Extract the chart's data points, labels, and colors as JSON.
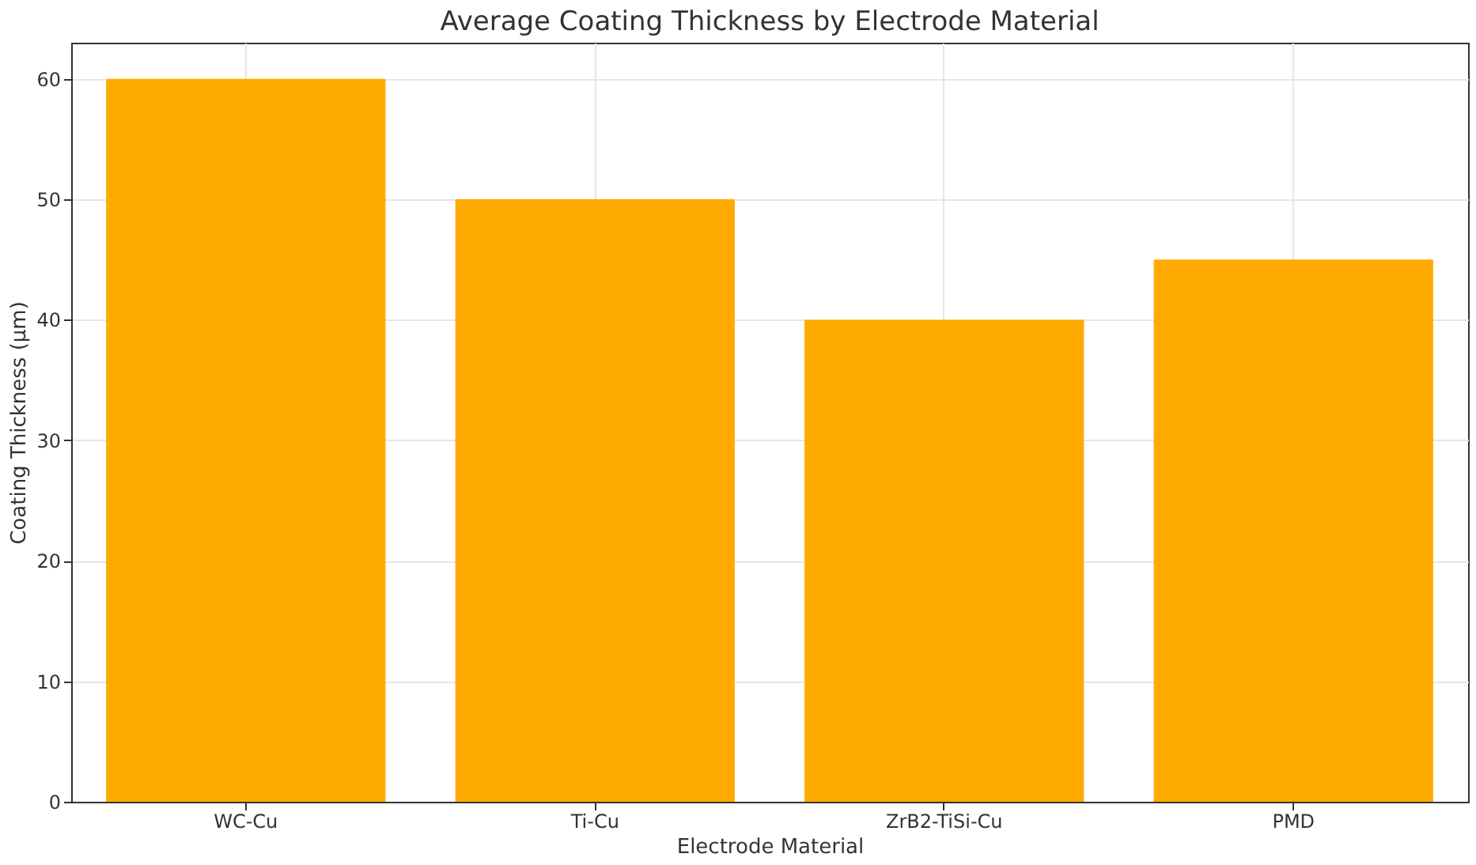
{
  "chart_data": {
    "type": "bar",
    "title": "Average Coating Thickness by Electrode Material",
    "xlabel": "Electrode Material",
    "ylabel": "Coating Thickness (µm)",
    "categories": [
      "WC-Cu",
      "Ti-Cu",
      "ZrB2-TiSi-Cu",
      "PMD"
    ],
    "values": [
      60,
      50,
      40,
      45
    ],
    "color": "#ffaa00",
    "ylim": [
      0,
      63
    ],
    "yticks": [
      0,
      10,
      20,
      30,
      40,
      50,
      60
    ],
    "grid": true
  }
}
